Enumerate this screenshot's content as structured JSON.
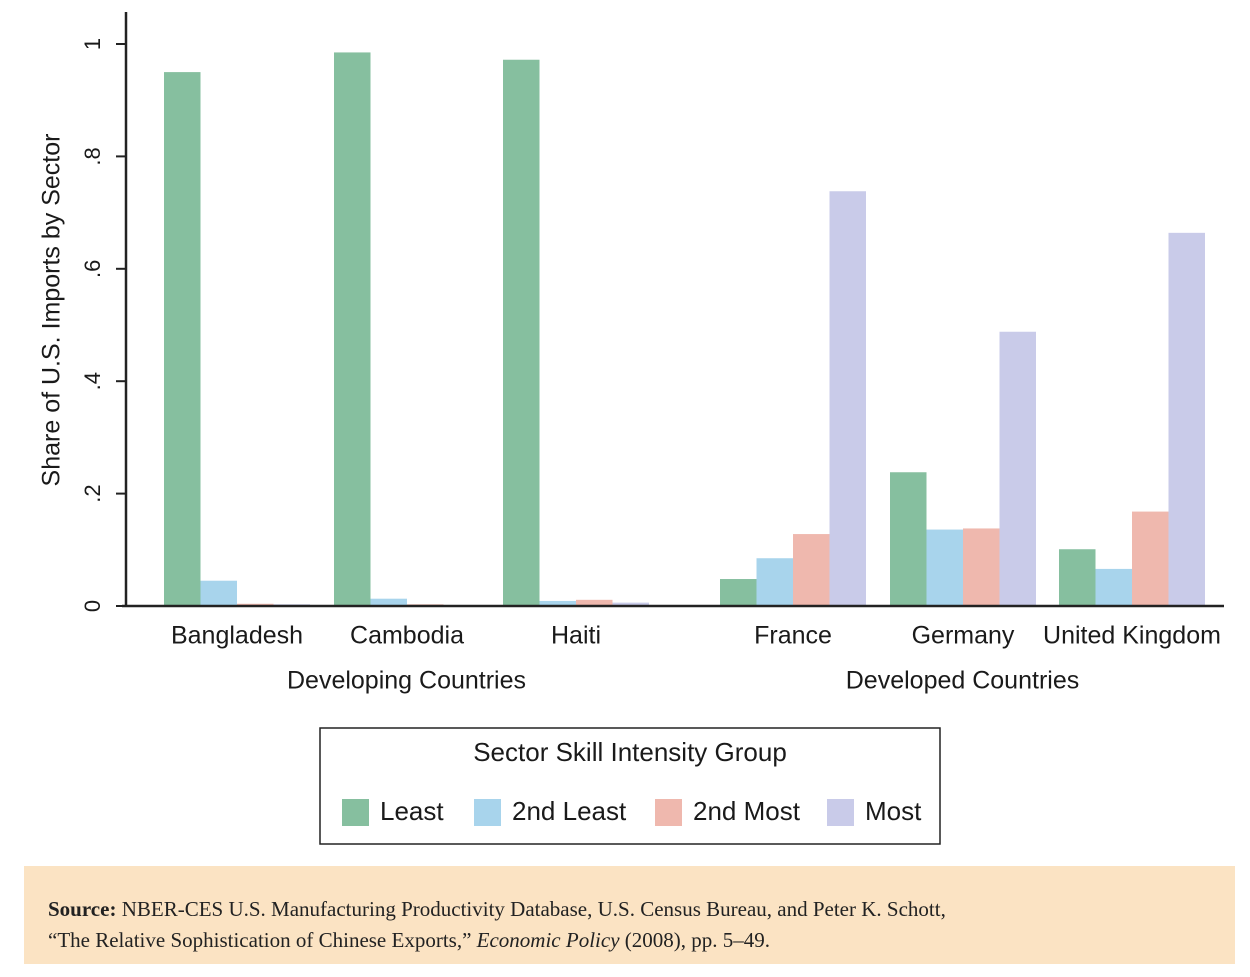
{
  "chart_data": {
    "type": "bar",
    "ylabel": "Share of U.S. Imports by Sector",
    "ylim": [
      0,
      1.08
    ],
    "yticks": [
      {
        "value": 0,
        "label": "0"
      },
      {
        "value": 0.2,
        "label": ".2"
      },
      {
        "value": 0.4,
        "label": ".4"
      },
      {
        "value": 0.6,
        "label": ".6"
      },
      {
        "value": 0.8,
        "label": ".8"
      },
      {
        "value": 1,
        "label": "1"
      }
    ],
    "categories": [
      "Bangladesh",
      "Cambodia",
      "Haiti",
      "France",
      "Germany",
      "United Kingdom"
    ],
    "groups": [
      {
        "label": "Developing Countries",
        "categories": [
          "Bangladesh",
          "Cambodia",
          "Haiti"
        ]
      },
      {
        "label": "Developed Countries",
        "categories": [
          "France",
          "Germany",
          "United Kingdom"
        ]
      }
    ],
    "series": [
      {
        "name": "Least",
        "color": "#86bf9f",
        "values": [
          0.95,
          0.985,
          0.972,
          0.048,
          0.238,
          0.101
        ]
      },
      {
        "name": "2nd Least",
        "color": "#a8d4ec",
        "values": [
          0.045,
          0.013,
          0.009,
          0.085,
          0.136,
          0.066
        ]
      },
      {
        "name": "2nd Most",
        "color": "#efb8ae",
        "values": [
          0.004,
          0.003,
          0.011,
          0.128,
          0.138,
          0.168
        ]
      },
      {
        "name": "Most",
        "color": "#c9cbe9",
        "values": [
          0.003,
          0.001,
          0.006,
          0.738,
          0.488,
          0.664
        ]
      }
    ],
    "legend": {
      "title": "Sector Skill Intensity Group",
      "position": "bottom"
    },
    "grid": false
  },
  "source": {
    "label": "Source:",
    "line1": "NBER-CES U.S. Manufacturing Productivity Database, U.S. Census Bureau, and Peter K. Schott,",
    "line2_pre": "“The Relative Sophistication of Chinese Exports,” ",
    "journal": "Economic Policy",
    "line2_post": " (2008), pp. 5–49."
  }
}
